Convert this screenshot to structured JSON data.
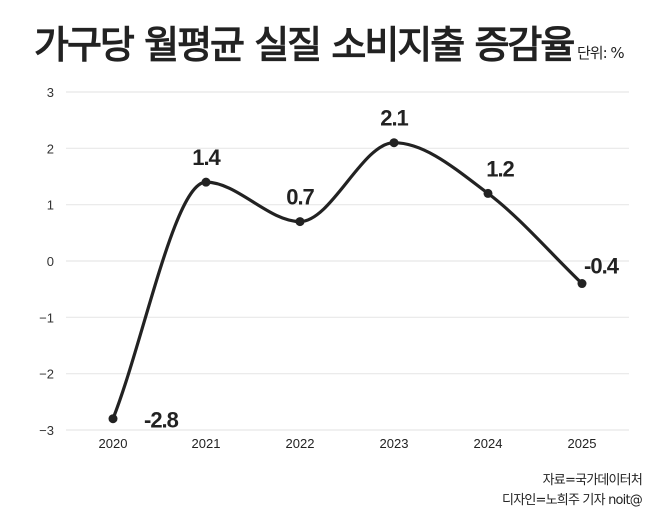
{
  "header": {
    "title": "가구당 월평균 실질 소비지출 증감율",
    "unit": "단위: %"
  },
  "footer": {
    "source": "자료=국가데이터처",
    "credit": "디자인=노희주 기자 noit@"
  },
  "colors": {
    "line": "#222222",
    "grid": "#e8e8e8",
    "text": "#222222"
  },
  "chart_data": {
    "type": "line",
    "title": "가구당 월평균 실질 소비지출 증감율",
    "subtitle": "단위: %",
    "xlabel": "",
    "ylabel": "",
    "categories": [
      "2020",
      "2021",
      "2022",
      "2023",
      "2024",
      "2025"
    ],
    "values": [
      -2.8,
      1.4,
      0.7,
      2.1,
      1.2,
      -0.4
    ],
    "data_labels": [
      "-2.8",
      "1.4",
      "0.7",
      "2.1",
      "1.2",
      "-0.4"
    ],
    "yticks": [
      "3",
      "2",
      "1",
      "0",
      "-1",
      "-2",
      "-3"
    ],
    "ylim": [
      -3,
      3
    ],
    "grid": true,
    "smooth": true,
    "legend": "none",
    "annotations": [
      "자료=국가데이터처",
      "디자인=노희주 기자 noit@"
    ]
  }
}
